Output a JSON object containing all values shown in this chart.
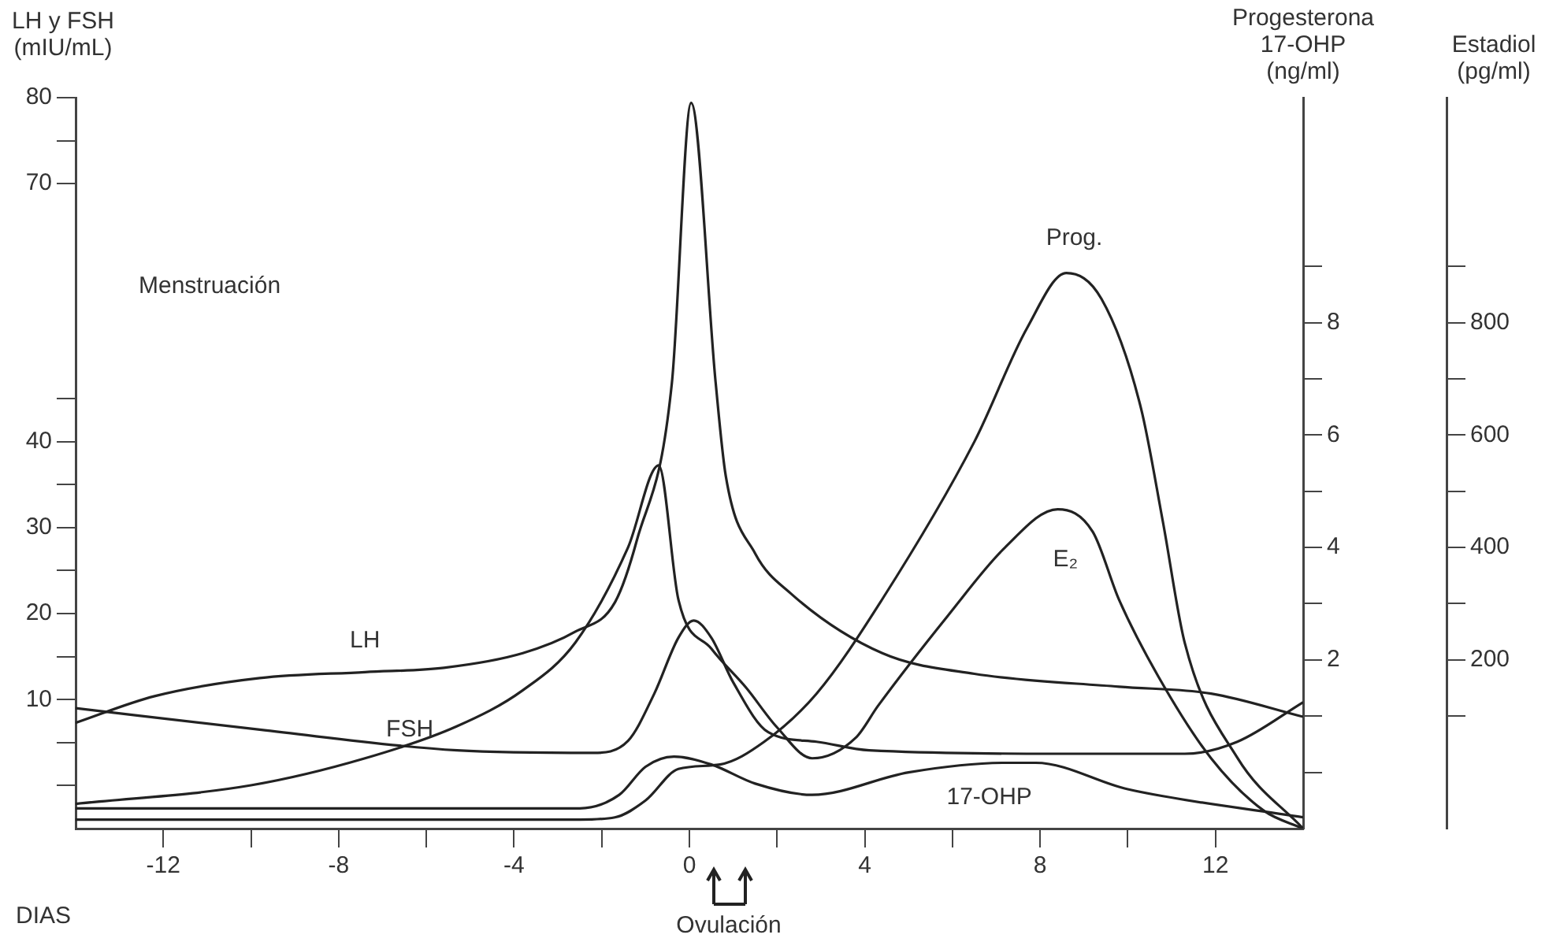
{
  "chart_data": {
    "type": "line",
    "xlabel": "DIAS",
    "ylabel": "LH y FSH (mIU/mL)",
    "y2label": "Progesterona 17-OHP (ng/ml)",
    "y3label": "Estadiol (pg/ml)",
    "xlim": [
      -14,
      14
    ],
    "xticks": [
      {
        "value": -12,
        "label": "-12"
      },
      {
        "value": -10,
        "label": null
      },
      {
        "value": -8,
        "label": "-8"
      },
      {
        "value": -6,
        "label": null
      },
      {
        "value": -4,
        "label": "-4"
      },
      {
        "value": -2,
        "label": null
      },
      0,
      {
        "value": 2,
        "label": null
      },
      4,
      {
        "value": 6,
        "label": null
      },
      8,
      {
        "value": 10,
        "label": null
      },
      12
    ],
    "ylim": [
      -5,
      80
    ],
    "yticks": [
      {
        "value": 0,
        "label": null
      },
      {
        "value": 5,
        "label": null
      },
      10,
      {
        "value": 15,
        "label": null
      },
      20,
      {
        "value": 25,
        "label": null
      },
      30,
      {
        "value": 35,
        "label": null
      },
      40,
      {
        "value": 45,
        "label": null
      },
      70,
      {
        "value": 75,
        "label": null
      },
      80
    ],
    "y2lim": [
      -1,
      12
    ],
    "y2ticks": [
      {
        "value": 0,
        "label": null
      },
      {
        "value": 1,
        "label": null
      },
      2,
      {
        "value": 3,
        "label": null
      },
      4,
      {
        "value": 5,
        "label": null
      },
      6,
      {
        "value": 7,
        "label": null
      },
      8,
      {
        "value": 9,
        "label": null
      }
    ],
    "y3lim": [
      -100,
      1200
    ],
    "y3ticks": [
      {
        "value": 100,
        "label": null
      },
      200,
      {
        "value": 300,
        "label": null
      },
      400,
      {
        "value": 500,
        "label": null
      },
      600,
      {
        "value": 700,
        "label": null
      },
      800,
      {
        "value": 900,
        "label": null
      }
    ],
    "legend": false,
    "marker": "none",
    "line_style": "solid",
    "annotations": [
      "Menstruación",
      "Ovulación"
    ],
    "series": [
      {
        "name": "LH",
        "color": "#222222",
        "x": [
          -14,
          -12.2,
          -9.8,
          -7.4,
          -5.6,
          -3.8,
          -2.6,
          -1.7,
          -1.2,
          -0.4,
          0.04,
          0.6,
          0.83,
          1.5,
          2.3,
          4.4,
          6.5,
          9.8,
          11.9,
          14
        ],
        "values": [
          7.3,
          10.4,
          12.5,
          13.2,
          13.7,
          15.4,
          17.9,
          21.3,
          28.5,
          46.8,
          79.4,
          46.8,
          36,
          27,
          22.4,
          15.4,
          13,
          11.5,
          10.7,
          8
        ]
      },
      {
        "name": "FSH",
        "color": "#222222",
        "x": [
          -14,
          -9.8,
          -5.3,
          -2.2,
          -1.4,
          -0.8,
          -0.25,
          0.1,
          0.5,
          1.0,
          1.8,
          2.9,
          4.1,
          8.9,
          11.3,
          12.5,
          14
        ],
        "values": [
          9,
          6.5,
          4.1,
          3.8,
          5.2,
          10.7,
          17.2,
          19.2,
          17.2,
          12,
          6.2,
          5.1,
          4.1,
          3.7,
          3.7,
          5.1,
          9.7
        ]
      },
      {
        "name": "E₂",
        "color": "#222222",
        "axis": "y3",
        "x": [
          -14,
          -10,
          -7.4,
          -5.3,
          -3.8,
          -2.6,
          -1.4,
          -0.7,
          -0.25,
          0.5,
          1.3,
          2.0,
          2.8,
          3.8,
          4.3,
          5.9,
          7.2,
          8.4,
          9.2,
          9.8,
          10.7,
          11.9,
          13.1,
          14
        ],
        "values": [
          -56,
          -23,
          25,
          82,
          146,
          231,
          400,
          546,
          307,
          220,
          150,
          80,
          25,
          62,
          118,
          279,
          400,
          468,
          428,
          307,
          170,
          25,
          -68,
          -100
        ]
      },
      {
        "name": "Prog.",
        "color": "#222222",
        "axis": "y2",
        "x": [
          -14,
          -2.5,
          -1.7,
          -1,
          -0.25,
          0.7,
          1.7,
          2.9,
          4.4,
          6.5,
          7.7,
          8.6,
          9.4,
          10.3,
          10.8,
          11.3,
          12.5,
          14
        ],
        "values": [
          -0.84,
          -0.84,
          -0.8,
          -0.5,
          0.06,
          0.14,
          0.54,
          1.4,
          3.08,
          5.88,
          7.9,
          8.88,
          8.42,
          6.48,
          4.46,
          2.3,
          0.26,
          -1
        ]
      },
      {
        "name": "17-OHP",
        "color": "#222222",
        "axis": "y2",
        "x": [
          -14,
          -2.5,
          -1.6,
          -1,
          -0.35,
          0.5,
          1.5,
          2.8,
          5,
          7.2,
          7.9,
          10,
          14
        ],
        "values": [
          -0.64,
          -0.64,
          -0.4,
          0.1,
          0.28,
          0.14,
          -0.2,
          -0.4,
          0,
          0.17,
          0.17,
          -0.3,
          -0.8
        ]
      }
    ]
  }
}
